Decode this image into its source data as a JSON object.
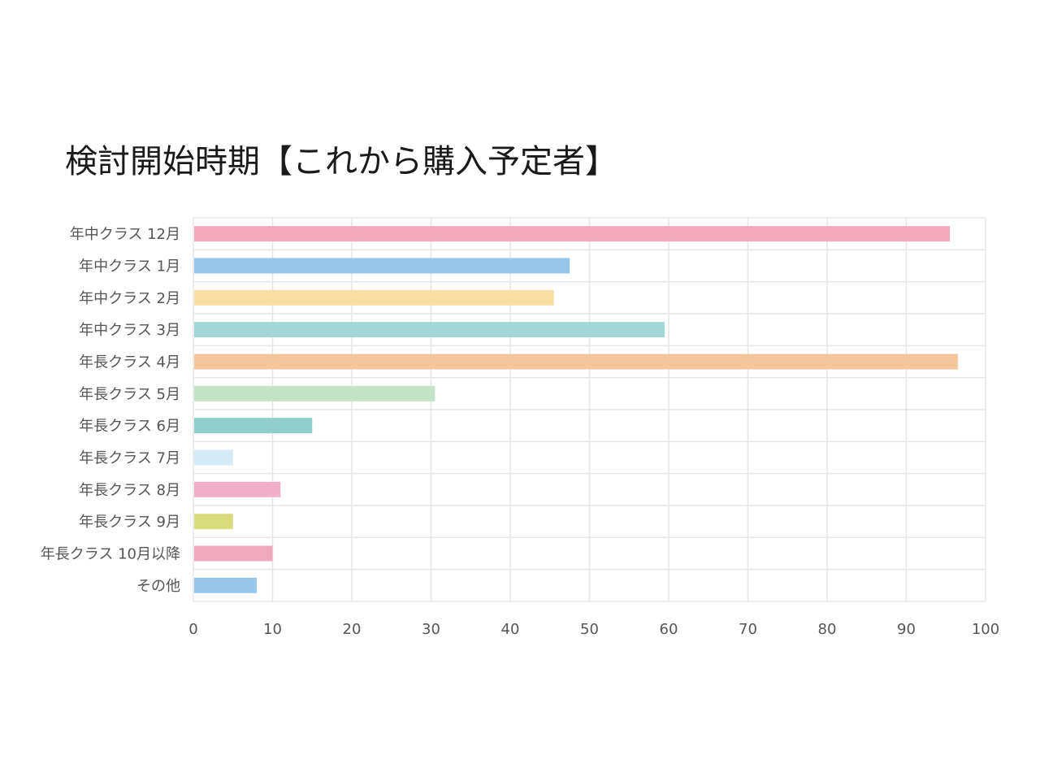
{
  "chart_data": {
    "type": "bar",
    "orientation": "horizontal",
    "title": "検討開始時期【これから購入予定者】",
    "xlabel": "",
    "ylabel": "",
    "xlim": [
      0,
      100
    ],
    "x_ticks": [
      0,
      10,
      20,
      30,
      40,
      50,
      60,
      70,
      80,
      90,
      100
    ],
    "grid": true,
    "categories": [
      "年中クラス 12月",
      "年中クラス 1月",
      "年中クラス 2月",
      "年中クラス 3月",
      "年長クラス 4月",
      "年長クラス 5月",
      "年長クラス 6月",
      "年長クラス 7月",
      "年長クラス 8月",
      "年長クラス 9月",
      "年長クラス 10月以降",
      "その他"
    ],
    "values": [
      95.5,
      47.5,
      45.5,
      59.5,
      96.5,
      30.5,
      15,
      5,
      11,
      5,
      10,
      8
    ],
    "colors": [
      "#f2a9bc",
      "#96c6ea",
      "#f8dfa4",
      "#a3d7d7",
      "#f5c59b",
      "#c4e3c6",
      "#8fcfcb",
      "#d4eaf4",
      "#f3aeca",
      "#d9dc7e",
      "#f0a8bd",
      "#96c6ea"
    ]
  }
}
